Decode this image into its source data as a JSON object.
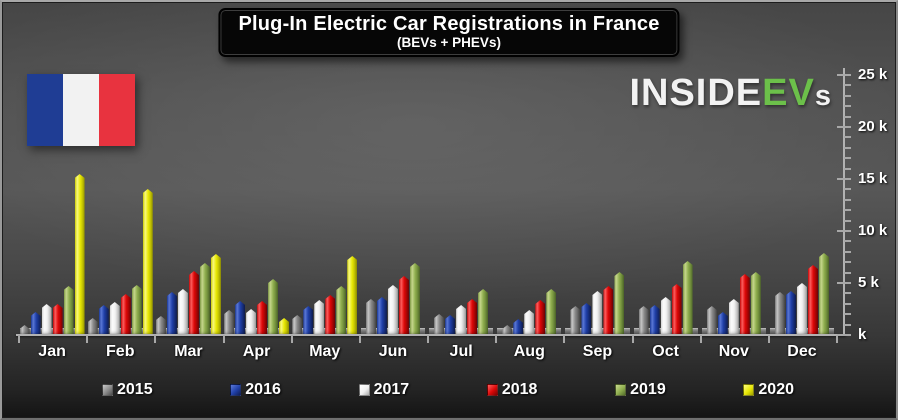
{
  "title": {
    "text": "Plug-In Electric Car Registrations in France",
    "subtitle": "(BEVs + PHEVs)"
  },
  "logo": {
    "white_part": "INSIDE",
    "green_part": "EV",
    "suffix": "s",
    "green_color": "#6cc04a",
    "white_color": "#f2f2f2"
  },
  "flag": {
    "country": "France",
    "blue": "#1f3d94",
    "white": "#f2f2f2",
    "red": "#e8333f"
  },
  "chart_data": {
    "type": "bar",
    "title": "Plug-In Electric Car Registrations in France",
    "subtitle": "(BEVs + PHEVs)",
    "categories": [
      "Jan",
      "Feb",
      "Mar",
      "Apr",
      "May",
      "Jun",
      "Jul",
      "Aug",
      "Sep",
      "Oct",
      "Nov",
      "Dec"
    ],
    "series": [
      {
        "name": "2015",
        "color": "#8a8a8a",
        "light": "#c9c9c9",
        "dark": "#4d4d4d",
        "values": [
          1000,
          1600,
          1800,
          2400,
          1900,
          3500,
          2000,
          1000,
          2800,
          2800,
          2800,
          4100
        ]
      },
      {
        "name": "2016",
        "color": "#2040a8",
        "light": "#5b79d8",
        "dark": "#101f56",
        "values": [
          2200,
          2900,
          4100,
          3300,
          2800,
          3700,
          1900,
          1500,
          3100,
          2900,
          2200,
          4200
        ]
      },
      {
        "name": "2017",
        "color": "#f0f0f0",
        "light": "#ffffff",
        "dark": "#ababab",
        "values": [
          3000,
          3200,
          4400,
          2500,
          3400,
          4800,
          2900,
          2400,
          4200,
          3700,
          3500,
          5000
        ]
      },
      {
        "name": "2018",
        "color": "#dd0808",
        "light": "#ff5f5f",
        "dark": "#7c0303",
        "values": [
          3000,
          3900,
          6200,
          3300,
          3800,
          5700,
          3500,
          3400,
          4700,
          4900,
          5900,
          6700
        ]
      },
      {
        "name": "2019",
        "color": "#8fae4e",
        "light": "#c8d98e",
        "dark": "#55702c",
        "values": [
          4700,
          4800,
          6900,
          5400,
          4700,
          6900,
          4400,
          4400,
          6100,
          7100,
          6100,
          7900
        ]
      },
      {
        "name": "2020",
        "color": "#e8e805",
        "light": "#fbfb82",
        "dark": "#9f9f00",
        "values": [
          15500,
          14000,
          7800,
          1600,
          7600,
          null,
          null,
          null,
          null,
          null,
          null,
          null
        ]
      }
    ],
    "ylim": [
      0,
      25500
    ],
    "yaxis": {
      "minor_step": 1000,
      "major_step": 5000,
      "max_tick": 25000,
      "ticks": [
        {
          "value": 0,
          "label": "k"
        },
        {
          "value": 5000,
          "label": "5 k"
        },
        {
          "value": 10000,
          "label": "10 k"
        },
        {
          "value": 15000,
          "label": "15 k"
        },
        {
          "value": 20000,
          "label": "20 k"
        },
        {
          "value": 25000,
          "label": "25 k"
        }
      ]
    },
    "grid": false,
    "legend_position": "bottom"
  }
}
